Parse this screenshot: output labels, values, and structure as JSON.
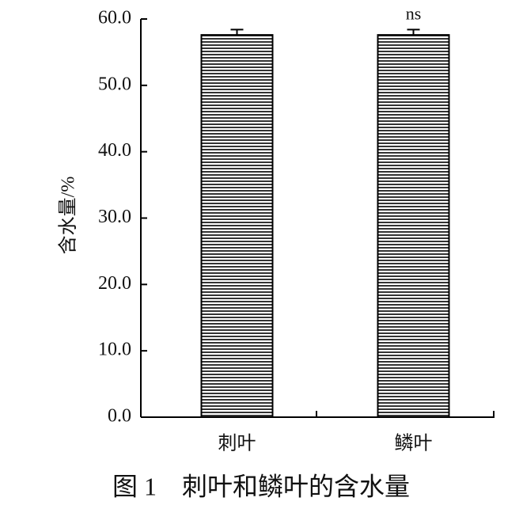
{
  "chart_data": {
    "type": "bar",
    "title": "图 1　刺叶和鳞叶的含水量",
    "y_label": "含水量/%",
    "categories": [
      "刺叶",
      "鳞叶"
    ],
    "values": [
      57.6,
      57.6
    ],
    "errors": [
      0.8,
      0.8
    ],
    "annotation": "ns",
    "color": "#000000",
    "ylim": [
      0,
      60
    ],
    "yticks": [
      {
        "value": 0,
        "label": "0.0"
      },
      {
        "value": 10,
        "label": "10.0"
      },
      {
        "value": 20,
        "label": "20.0"
      },
      {
        "value": 30,
        "label": "30.0"
      },
      {
        "value": 40,
        "label": "40.0"
      },
      {
        "value": 50,
        "label": "50.0"
      },
      {
        "value": 60,
        "label": "60.0"
      }
    ]
  }
}
